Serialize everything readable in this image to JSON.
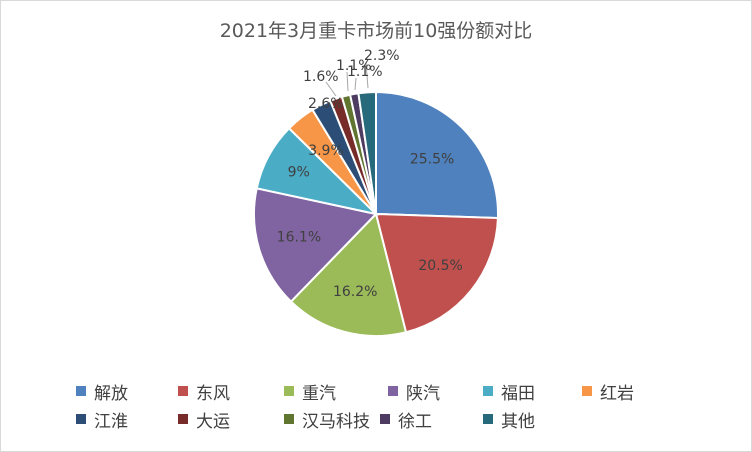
{
  "chart_data": {
    "type": "pie",
    "title": "2021年3月重卡市场前10强份额对比",
    "legend_position": "bottom",
    "slices": [
      {
        "name": "解放",
        "value": 25.5,
        "label": "25.5%",
        "color": "#4E81BD"
      },
      {
        "name": "东风",
        "value": 20.5,
        "label": "20.5%",
        "color": "#C0504D"
      },
      {
        "name": "重汽",
        "value": 16.2,
        "label": "16.2%",
        "color": "#9BBB59"
      },
      {
        "name": "陕汽",
        "value": 16.1,
        "label": "16.1%",
        "color": "#8064A2"
      },
      {
        "name": "福田",
        "value": 9.0,
        "label": "9%",
        "color": "#4BACC6"
      },
      {
        "name": "红岩",
        "value": 3.9,
        "label": "3.9%",
        "color": "#F79646"
      },
      {
        "name": "江淮",
        "value": 2.6,
        "label": "2.6%",
        "color": "#2C4D75"
      },
      {
        "name": "大运",
        "value": 1.6,
        "label": "1.6%",
        "color": "#772C2A"
      },
      {
        "name": "汉马科技",
        "value": 1.1,
        "label": "1.1%",
        "color": "#5F7530"
      },
      {
        "name": "徐工",
        "value": 1.1,
        "label": "1.1%",
        "color": "#4D3B62"
      },
      {
        "name": "其他",
        "value": 2.3,
        "label": "2.3%",
        "color": "#276A7C"
      }
    ]
  }
}
